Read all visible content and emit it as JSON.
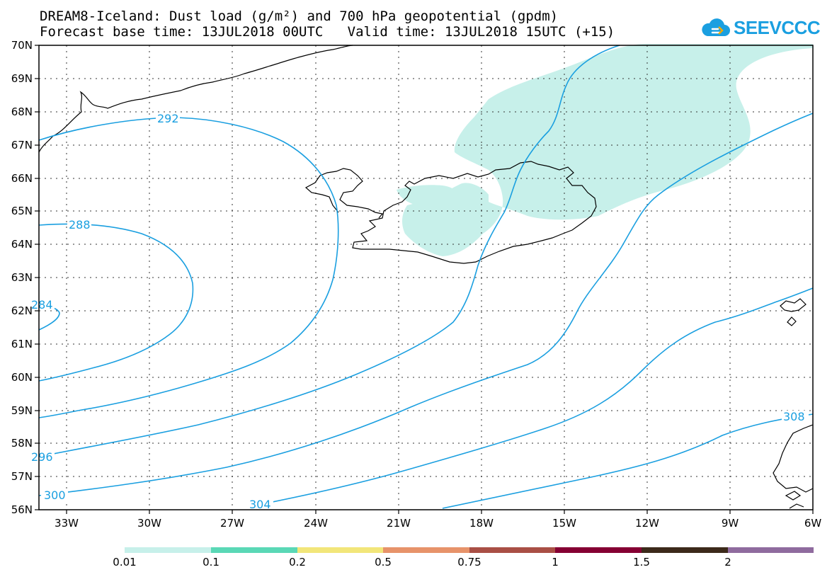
{
  "title": {
    "line1": "DREAM8-Iceland: Dust load (g/m²) and 700 hPa geopotential (gpdm)",
    "line2": "Forecast base time: 13JUL2018 00UTC   Valid time: 13JUL2018 15UTC (+15)"
  },
  "logo": {
    "text": "SEEVCCC",
    "icon": "cloud-icon",
    "color": "#1a9fe0"
  },
  "map": {
    "lat_labels": [
      "70N",
      "69N",
      "68N",
      "67N",
      "66N",
      "65N",
      "64N",
      "63N",
      "62N",
      "61N",
      "60N",
      "59N",
      "58N",
      "57N",
      "56N"
    ],
    "lon_labels": [
      "33W",
      "30W",
      "27W",
      "24W",
      "21W",
      "18W",
      "15W",
      "12W",
      "9W",
      "6W"
    ],
    "contour_color": "#1a9fe0",
    "dust_color": "#c7f0ea",
    "contour_labels": [
      "292",
      "288",
      "284",
      "296",
      "300",
      "304",
      "308"
    ]
  },
  "colorbar": {
    "colors": [
      "#c7f0ea",
      "#5ad8b6",
      "#f2e67a",
      "#e7936a",
      "#a94f45",
      "#850033",
      "#3c2a1a",
      "#8f6b9e"
    ],
    "labels": [
      "0.01",
      "0.1",
      "0.2",
      "0.5",
      "0.75",
      "1",
      "1.5",
      "2"
    ]
  }
}
